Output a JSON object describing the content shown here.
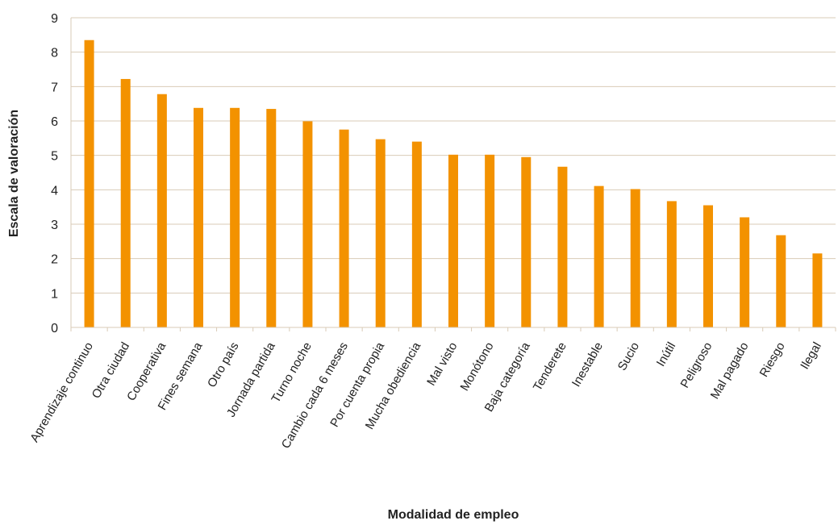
{
  "chart_data": {
    "type": "bar",
    "xlabel": "Modalidad de empleo",
    "ylabel": "Escala de valoración",
    "ylim": [
      0,
      9
    ],
    "yticks": [
      0,
      1,
      2,
      3,
      4,
      5,
      6,
      7,
      8,
      9
    ],
    "grid": "horizontal",
    "legend": "none",
    "bar_color": "#F39200",
    "grid_color": "#D9CBB7",
    "categories": [
      "Aprendizaje continuo",
      "Otra ciudad",
      "Cooperativa",
      "Fines semana",
      "Otro país",
      "Jornada partida",
      "Turno noche",
      "Cambio cada 6 meses",
      "Por cuenta propia",
      "Mucha obediencia",
      "Mal visto",
      "Monótono",
      "Baja categoría",
      "Tenderete",
      "Inestable",
      "Sucio",
      "Inútil",
      "Peligroso",
      "Mal pagado",
      "Riesgo",
      "Ilegal"
    ],
    "values": [
      8.35,
      7.22,
      6.78,
      6.38,
      6.38,
      6.35,
      5.99,
      5.75,
      5.47,
      5.4,
      5.02,
      5.02,
      4.95,
      4.67,
      4.11,
      4.02,
      3.67,
      3.55,
      3.2,
      2.68,
      2.15
    ]
  }
}
